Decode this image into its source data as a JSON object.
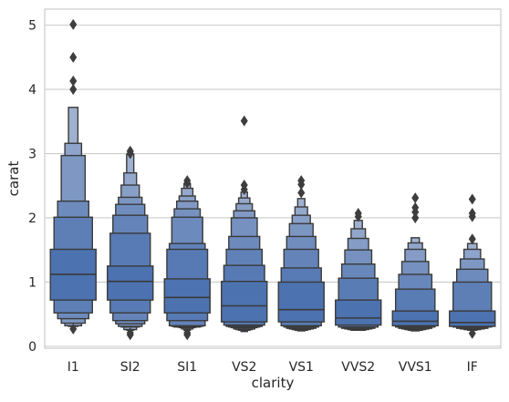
{
  "chart_data": {
    "type": "boxen",
    "title": "",
    "xlabel": "clarity",
    "ylabel": "carat",
    "ylim": [
      -0.03,
      5.25
    ],
    "yticks": [
      0,
      1,
      2,
      3,
      4,
      5
    ],
    "grid": "horizontal",
    "colors": {
      "base": "#4C72B0",
      "light": "#AFBCD6",
      "edge": "#3a3a3a",
      "grid": "#cccccc",
      "frame": "#cccccc"
    },
    "categories": [
      "I1",
      "SI2",
      "SI1",
      "VS2",
      "VS1",
      "VVS2",
      "VVS1",
      "IF"
    ],
    "series": [
      {
        "category": "I1",
        "median": 1.12,
        "levels": [
          [
            0.72,
            1.51
          ],
          [
            0.52,
            2.01
          ],
          [
            0.43,
            2.26
          ],
          [
            0.36,
            2.97
          ],
          [
            0.32,
            3.16
          ],
          [
            0.31,
            3.72
          ]
        ],
        "outliers": [
          0.27,
          4.0,
          4.13,
          4.5,
          5.01
        ]
      },
      {
        "category": "SI2",
        "median": 1.01,
        "levels": [
          [
            0.72,
            1.25
          ],
          [
            0.52,
            1.76
          ],
          [
            0.4,
            2.04
          ],
          [
            0.35,
            2.21
          ],
          [
            0.31,
            2.32
          ],
          [
            0.3,
            2.51
          ],
          [
            0.26,
            2.7
          ],
          [
            0.25,
            2.99
          ]
        ],
        "outliers": [
          0.21,
          0.18,
          3.0,
          3.04
        ]
      },
      {
        "category": "SI1",
        "median": 0.76,
        "levels": [
          [
            0.52,
            1.05
          ],
          [
            0.4,
            1.51
          ],
          [
            0.32,
            1.6
          ],
          [
            0.31,
            2.01
          ],
          [
            0.3,
            2.14
          ],
          [
            0.3,
            2.26
          ],
          [
            0.29,
            2.34
          ],
          [
            0.27,
            2.46
          ],
          [
            0.25,
            2.53
          ]
        ],
        "outliers": [
          0.21,
          0.18,
          2.58,
          2.54
        ]
      },
      {
        "category": "VS2",
        "median": 0.63,
        "levels": [
          [
            0.38,
            1.01
          ],
          [
            0.33,
            1.26
          ],
          [
            0.31,
            1.51
          ],
          [
            0.3,
            1.71
          ],
          [
            0.29,
            2.0
          ],
          [
            0.27,
            2.11
          ],
          [
            0.26,
            2.22
          ],
          [
            0.25,
            2.31
          ],
          [
            0.23,
            2.4
          ]
        ],
        "outliers": [
          2.44,
          2.51,
          3.51
        ]
      },
      {
        "category": "VS1",
        "median": 0.57,
        "levels": [
          [
            0.38,
            1.0
          ],
          [
            0.32,
            1.22
          ],
          [
            0.3,
            1.51
          ],
          [
            0.28,
            1.71
          ],
          [
            0.27,
            1.91
          ],
          [
            0.26,
            2.04
          ],
          [
            0.25,
            2.17
          ],
          [
            0.24,
            2.3
          ]
        ],
        "outliers": [
          2.39,
          2.52,
          2.58
        ]
      },
      {
        "category": "VVS2",
        "median": 0.44,
        "levels": [
          [
            0.33,
            0.72
          ],
          [
            0.3,
            1.06
          ],
          [
            0.28,
            1.28
          ],
          [
            0.27,
            1.5
          ],
          [
            0.26,
            1.68
          ],
          [
            0.25,
            1.83
          ],
          [
            0.25,
            1.96
          ]
        ],
        "outliers": [
          2.02,
          2.07
        ]
      },
      {
        "category": "VVS1",
        "median": 0.39,
        "levels": [
          [
            0.32,
            0.55
          ],
          [
            0.3,
            0.89
          ],
          [
            0.28,
            1.12
          ],
          [
            0.27,
            1.32
          ],
          [
            0.26,
            1.51
          ],
          [
            0.25,
            1.61
          ],
          [
            0.24,
            1.69
          ]
        ],
        "outliers": [
          2.0,
          2.09,
          2.16,
          2.31
        ]
      },
      {
        "category": "IF",
        "median": 0.37,
        "levels": [
          [
            0.31,
            0.55
          ],
          [
            0.3,
            1.0
          ],
          [
            0.28,
            1.2
          ],
          [
            0.27,
            1.36
          ],
          [
            0.26,
            1.51
          ],
          [
            0.25,
            1.6
          ]
        ],
        "outliers": [
          0.2,
          1.67,
          2.02,
          2.07,
          2.29
        ]
      }
    ]
  }
}
